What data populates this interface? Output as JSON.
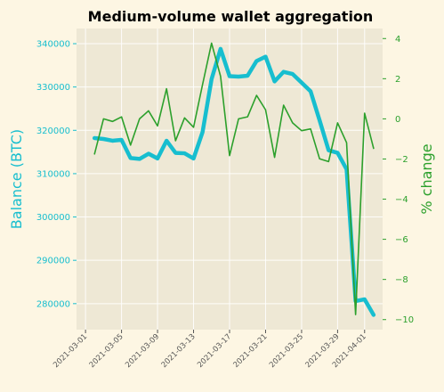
{
  "chart_data": {
    "type": "line",
    "title": "Medium-volume wallet aggregation",
    "xlabel": "",
    "ylabel_left": "Balance (BTC)",
    "ylabel_right": "% change",
    "x": [
      "2021-03-02",
      "2021-03-03",
      "2021-03-04",
      "2021-03-05",
      "2021-03-06",
      "2021-03-07",
      "2021-03-08",
      "2021-03-09",
      "2021-03-10",
      "2021-03-11",
      "2021-03-12",
      "2021-03-13",
      "2021-03-14",
      "2021-03-15",
      "2021-03-16",
      "2021-03-17",
      "2021-03-18",
      "2021-03-19",
      "2021-03-20",
      "2021-03-21",
      "2021-03-22",
      "2021-03-23",
      "2021-03-24",
      "2021-03-25",
      "2021-03-26",
      "2021-03-27",
      "2021-03-28",
      "2021-03-29",
      "2021-03-30",
      "2021-03-31",
      "2021-04-01",
      "2021-04-02"
    ],
    "x_ticks": [
      "2021-03-01",
      "2021-03-05",
      "2021-03-09",
      "2021-03-13",
      "2021-03-17",
      "2021-03-21",
      "2021-03-25",
      "2021-03-29",
      "2021-04-01"
    ],
    "xlim": [
      "2021-02-28",
      "2021-04-03"
    ],
    "series": [
      {
        "axis": "left",
        "color": "#17becf",
        "values": [
          318200,
          318000,
          317600,
          317800,
          313600,
          313400,
          314600,
          313500,
          317600,
          314800,
          314700,
          313500,
          319600,
          331800,
          338800,
          332500,
          332400,
          332600,
          336000,
          337000,
          331300,
          333500,
          333000,
          331000,
          329000,
          322300,
          315400,
          314800,
          311000,
          280600,
          281000,
          277400
        ]
      },
      {
        "axis": "right",
        "color": "#2ca02c",
        "values": [
          -1.75,
          0.0,
          -0.13,
          0.1,
          -1.31,
          0.0,
          0.4,
          -0.35,
          1.5,
          -1.09,
          0.05,
          -0.42,
          1.71,
          3.77,
          2.12,
          -1.83,
          0.0,
          0.1,
          1.17,
          0.45,
          -1.92,
          0.68,
          -0.2,
          -0.59,
          -0.5,
          -1.99,
          -2.13,
          -0.2,
          -1.19,
          -9.75,
          0.28,
          -1.47
        ]
      }
    ],
    "ylim_left": [
      274000,
      343500
    ],
    "ylim_right": [
      -10.5,
      4.5
    ],
    "y_ticks_left": [
      280000,
      290000,
      300000,
      310000,
      320000,
      330000,
      340000
    ],
    "y_ticks_right": [
      -10,
      -8,
      -6,
      -4,
      -2,
      0,
      2,
      4
    ],
    "grid": true,
    "colors": {
      "background": "#fdf6e3",
      "plot_background": "#eee8d5",
      "left_axis": "#17becf",
      "right_axis": "#2ca02c"
    }
  }
}
